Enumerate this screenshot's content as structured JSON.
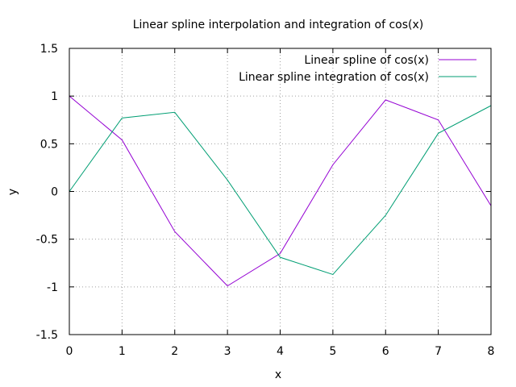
{
  "chart_data": {
    "type": "line",
    "title": "Linear spline interpolation and integration of cos(x)",
    "xlabel": "x",
    "ylabel": "y",
    "xlim": [
      0,
      8
    ],
    "ylim": [
      -1.5,
      1.5
    ],
    "xticks": [
      0,
      1,
      2,
      3,
      4,
      5,
      6,
      7,
      8
    ],
    "yticks": [
      -1.5,
      -1,
      -0.5,
      0,
      0.5,
      1,
      1.5
    ],
    "xtick_labels": [
      "0",
      "1",
      "2",
      "3",
      "4",
      "5",
      "6",
      "7",
      "8"
    ],
    "ytick_labels": [
      "-1.5",
      "-1",
      "-0.5",
      "0",
      "0.5",
      "1",
      "1.5"
    ],
    "grid": true,
    "legend_position": "top-right",
    "series": [
      {
        "name": "Linear spline of cos(x)",
        "color": "#9400d3",
        "x": [
          0,
          1,
          2,
          3,
          4,
          5,
          6,
          7,
          8
        ],
        "y": [
          1.0,
          0.54,
          -0.42,
          -0.99,
          -0.65,
          0.28,
          0.96,
          0.75,
          -0.15
        ]
      },
      {
        "name": "Linear spline integration of cos(x)",
        "color": "#009e73",
        "x": [
          0,
          1,
          2,
          3,
          4,
          5,
          6,
          7,
          8
        ],
        "y": [
          0.0,
          0.77,
          0.83,
          0.12,
          -0.69,
          -0.87,
          -0.25,
          0.61,
          0.9
        ]
      }
    ]
  }
}
